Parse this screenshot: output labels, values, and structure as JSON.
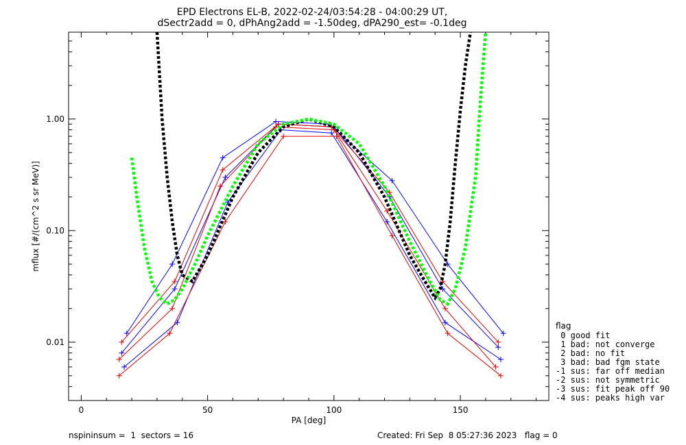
{
  "header": {
    "title_line1": "EPD Electrons EL-B, 2022-02-24/03:54:28 - 04:00:29 UT,",
    "title_line2": "dSectr2add = 0, dPhAng2add = -1.50deg, dPA290_est=  -0.1deg"
  },
  "footer": {
    "left": "nspininsum =  1  sectors = 16",
    "right": "Created: Fri Sep  8 05:27:36 2023   flag = 0"
  },
  "flag_legend": {
    "title": "flag",
    "items": [
      " 0 good fit",
      " 1 bad: not converge",
      " 2 bad: no fit",
      " 3 bad: bad fgm state",
      "-1 sus: far off median",
      "-2 sus: not symmetric",
      "-3 sus: fit peak off 90",
      "-4 sus: peaks high var"
    ]
  },
  "colors": {
    "axis": "#000000",
    "data_red": "#e00000",
    "data_blue": "#0000ff",
    "fit_black": "#000000",
    "fit_green": "#00ff00"
  },
  "chart_data": {
    "type": "line",
    "xlabel": "PA [deg]",
    "ylabel": "mflux [#/(cm^2 s sr MeV)]",
    "xlim": [
      -5,
      185
    ],
    "ylim": [
      0.003,
      6.0
    ],
    "yscale": "log",
    "grid": false,
    "x_ticks": [
      0,
      50,
      100,
      150
    ],
    "x_tick_labels": [
      "0",
      "50",
      "100",
      "150"
    ],
    "y_ticks": [
      0.01,
      0.1,
      1.0
    ],
    "y_tick_labels": [
      "0.01",
      "0.10",
      "1.00"
    ],
    "series": [
      {
        "color": "#0000ff",
        "marker": "+",
        "x": [
          16,
          37,
          57,
          78,
          100,
          122,
          143,
          165
        ],
        "y": [
          0.008,
          0.03,
          0.3,
          0.9,
          0.85,
          0.2,
          0.03,
          0.009
        ]
      },
      {
        "color": "#0000ff",
        "marker": "+",
        "x": [
          17,
          38,
          58,
          79,
          99,
          121,
          144,
          166
        ],
        "y": [
          0.006,
          0.015,
          0.18,
          0.8,
          0.75,
          0.12,
          0.015,
          0.007
        ]
      },
      {
        "color": "#0000ff",
        "marker": "+",
        "x": [
          18,
          36,
          56,
          77,
          98,
          123,
          145,
          167
        ],
        "y": [
          0.012,
          0.05,
          0.45,
          0.95,
          0.9,
          0.28,
          0.05,
          0.012
        ]
      },
      {
        "color": "#e00000",
        "marker": "+",
        "x": [
          15,
          36,
          55,
          77,
          100,
          121,
          144,
          164
        ],
        "y": [
          0.007,
          0.02,
          0.25,
          0.85,
          0.8,
          0.15,
          0.02,
          0.006
        ]
      },
      {
        "color": "#e00000",
        "marker": "+",
        "x": [
          16,
          37,
          56,
          78,
          99,
          122,
          143,
          165
        ],
        "y": [
          0.01,
          0.035,
          0.35,
          0.9,
          0.85,
          0.22,
          0.035,
          0.01
        ]
      },
      {
        "color": "#e00000",
        "marker": "+",
        "x": [
          15,
          35,
          57,
          80,
          101,
          123,
          145,
          166
        ],
        "y": [
          0.005,
          0.012,
          0.12,
          0.7,
          0.7,
          0.09,
          0.012,
          0.005
        ]
      },
      {
        "color": "#000000",
        "style": "dashed",
        "x": [
          30,
          32,
          34,
          36,
          38,
          40,
          44,
          50,
          60,
          70,
          80,
          90,
          100,
          110,
          120,
          130,
          136,
          140,
          142,
          144,
          146,
          148,
          150,
          152,
          154
        ],
        "y": [
          6.0,
          1.0,
          0.3,
          0.12,
          0.06,
          0.04,
          0.035,
          0.06,
          0.2,
          0.5,
          0.85,
          1.0,
          0.85,
          0.5,
          0.2,
          0.06,
          0.035,
          0.025,
          0.03,
          0.05,
          0.12,
          0.4,
          1.2,
          3.0,
          6.0
        ]
      },
      {
        "color": "#00ff00",
        "style": "dashed",
        "x": [
          20,
          22,
          25,
          28,
          31,
          34,
          37,
          40,
          45,
          50,
          60,
          70,
          80,
          90,
          100,
          110,
          120,
          130,
          138,
          142,
          145,
          148,
          152,
          156,
          158,
          160
        ],
        "y": [
          0.45,
          0.2,
          0.07,
          0.035,
          0.025,
          0.022,
          0.024,
          0.03,
          0.05,
          0.09,
          0.25,
          0.6,
          0.9,
          1.0,
          0.9,
          0.6,
          0.25,
          0.08,
          0.035,
          0.024,
          0.022,
          0.03,
          0.07,
          0.3,
          1.5,
          6.0
        ]
      }
    ]
  }
}
